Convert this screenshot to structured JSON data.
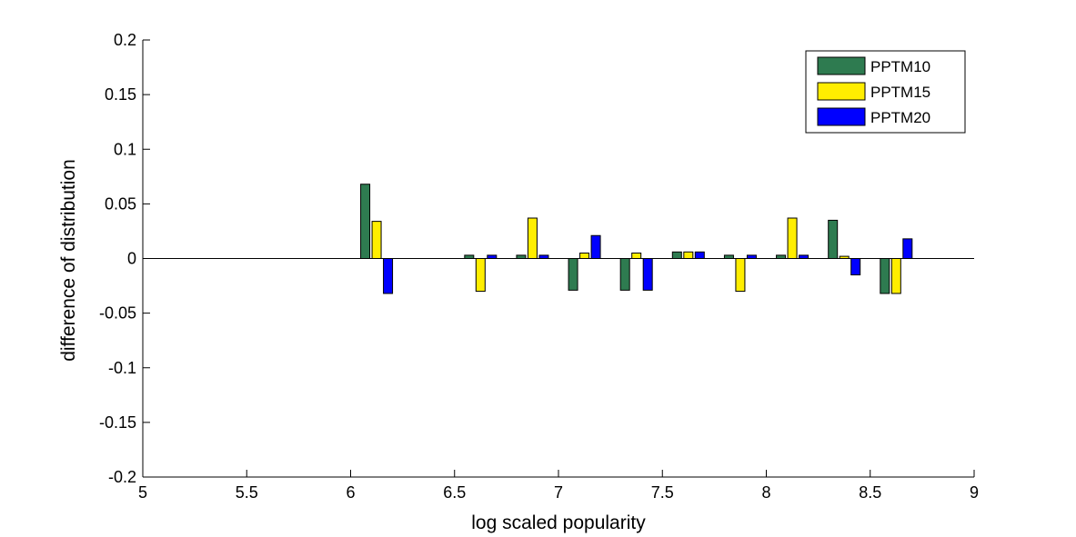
{
  "chart_data": {
    "type": "bar",
    "title": "",
    "xlabel": "log scaled popularity",
    "ylabel": "difference of distribution",
    "xlim": [
      5,
      9
    ],
    "ylim": [
      -0.2,
      0.2
    ],
    "xticks": [
      "5",
      "5.5",
      "6",
      "6.5",
      "7",
      "7.5",
      "8",
      "8.5",
      "9"
    ],
    "yticks": [
      "0.2",
      "0.15",
      "0.1",
      "0.05",
      "0",
      "-0.05",
      "-0.1",
      "-0.15",
      "-0.2"
    ],
    "x": [
      6.125,
      6.625,
      6.875,
      7.125,
      7.375,
      7.625,
      7.875,
      8.125,
      8.375,
      8.625
    ],
    "series": [
      {
        "name": "PPTM10",
        "color": "#2e7b50",
        "values": [
          0.068,
          0.003,
          0.003,
          -0.029,
          -0.029,
          0.006,
          0.003,
          0.003,
          0.035,
          -0.032
        ]
      },
      {
        "name": "PPTM15",
        "color": "#ffee00",
        "values": [
          0.034,
          -0.03,
          0.037,
          0.005,
          0.005,
          0.006,
          -0.03,
          0.037,
          0.002,
          -0.032
        ]
      },
      {
        "name": "PPTM20",
        "color": "#0000ff",
        "values": [
          -0.032,
          0.003,
          0.003,
          0.021,
          -0.029,
          0.006,
          0.003,
          0.003,
          -0.015,
          0.018
        ]
      }
    ],
    "legend_position": "top-right",
    "grid": false
  }
}
